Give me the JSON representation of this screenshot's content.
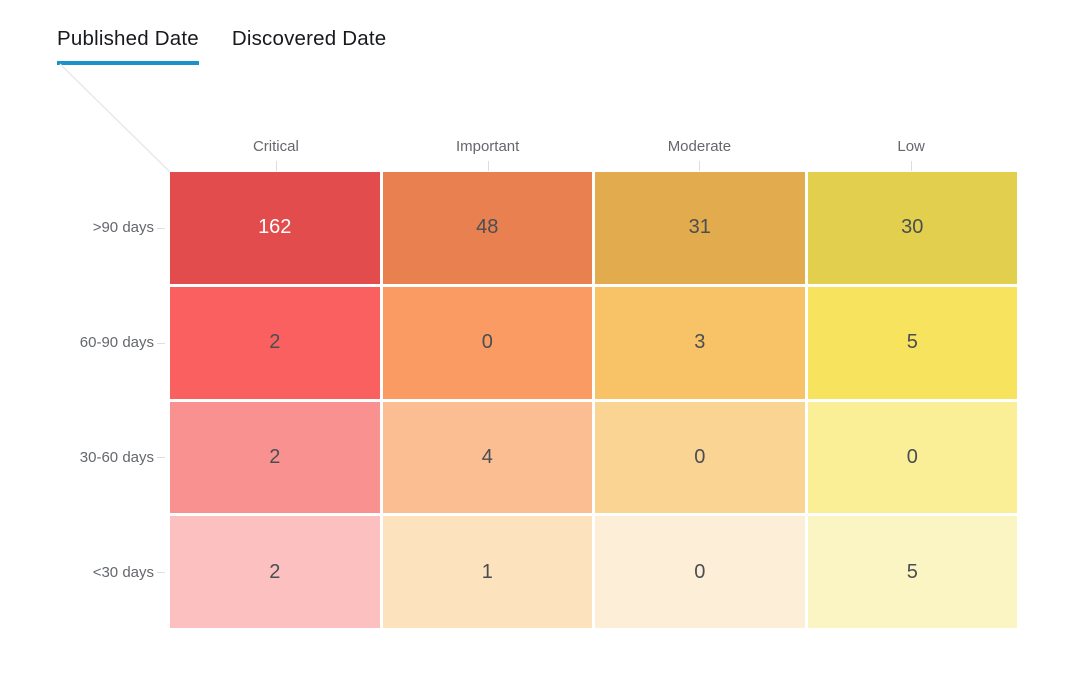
{
  "tabs": [
    {
      "label": "Published Date",
      "active": true
    },
    {
      "label": "Discovered Date",
      "active": false
    }
  ],
  "accent_color": "#1b93c8",
  "guide_line_color": "#e9e9e9",
  "tick_color": "#dedede",
  "chart_data": {
    "type": "heatmap",
    "columns": [
      "Critical",
      "Important",
      "Moderate",
      "Low"
    ],
    "rows": [
      ">90 days",
      "60-90 days",
      "30-60 days",
      "<30 days"
    ],
    "values": [
      [
        162,
        48,
        31,
        30
      ],
      [
        2,
        0,
        3,
        5
      ],
      [
        2,
        4,
        0,
        0
      ],
      [
        2,
        1,
        0,
        5
      ]
    ],
    "cell_colors": [
      [
        "#e24c4c",
        "#e8814f",
        "#e2ab4e",
        "#e2cf4e"
      ],
      [
        "#fb6060",
        "#f99b63",
        "#f8c366",
        "#f8e35e"
      ],
      [
        "#fa9191",
        "#fbbe92",
        "#f9d492",
        "#faee97"
      ],
      [
        "#fcc0c0",
        "#fde2be",
        "#fdeed8",
        "#fbf5c3"
      ]
    ],
    "cell_text_colors": [
      [
        "#ffffff",
        "#4a4e53",
        "#4a4e53",
        "#4a4e53"
      ],
      [
        "#4a4e53",
        "#4a4e53",
        "#4a4e53",
        "#4a4e53"
      ],
      [
        "#4a4e53",
        "#4a4e53",
        "#4a4e53",
        "#4a4e53"
      ],
      [
        "#4a4e53",
        "#4a4e53",
        "#4a4e53",
        "#4a4e53"
      ]
    ],
    "legend": "none",
    "grid_gap_color": "#ffffff"
  }
}
